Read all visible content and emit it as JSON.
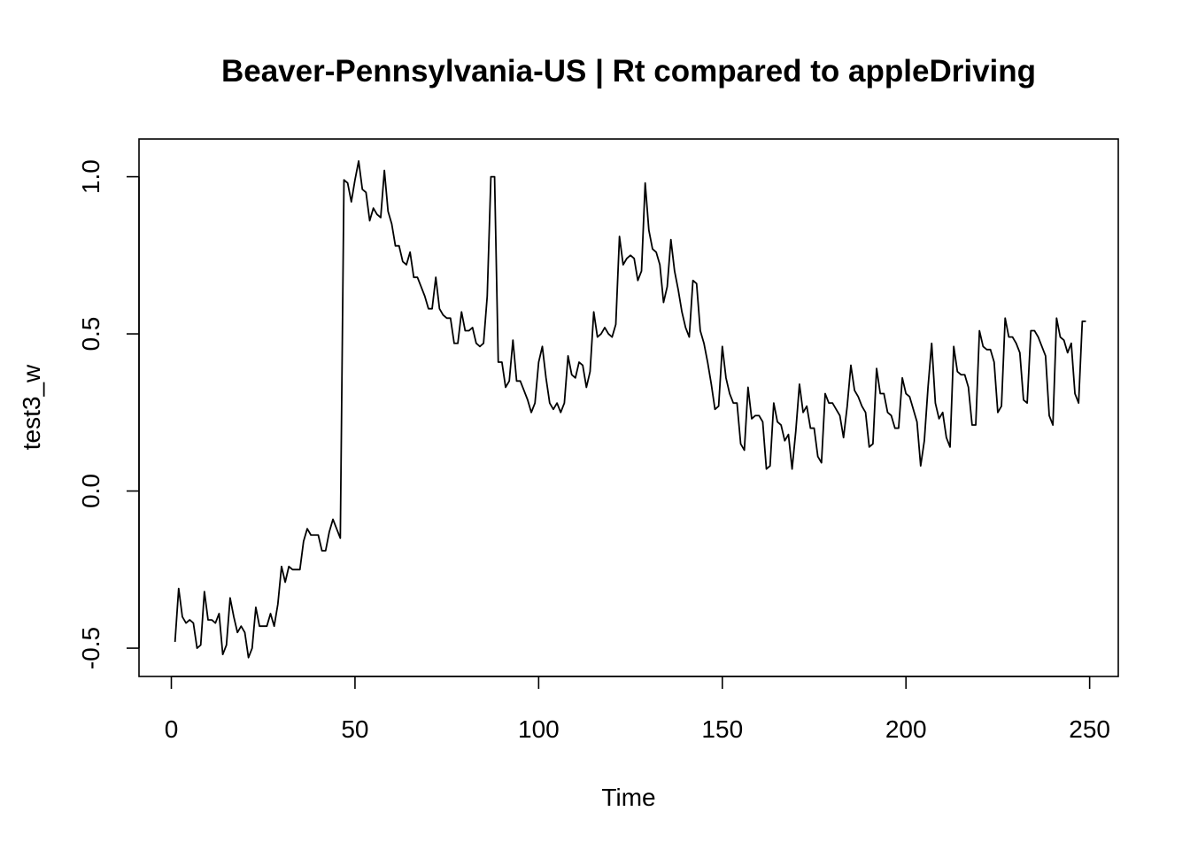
{
  "chart_data": {
    "type": "line",
    "title": "Beaver-Pennsylvania-US | Rt compared to appleDriving",
    "xlabel": "Time",
    "ylabel": "test3_w",
    "xlim": [
      -8.8,
      257.8
    ],
    "ylim": [
      -0.59,
      1.12
    ],
    "grid": false,
    "x_ticks": [
      0,
      50,
      100,
      150,
      200,
      250
    ],
    "y_ticks": [
      -0.5,
      0.0,
      0.5,
      1.0
    ],
    "x_tick_labels": [
      "0",
      "50",
      "100",
      "150",
      "200",
      "250"
    ],
    "y_tick_labels": [
      "-0.5",
      "0.0",
      "0.5",
      "1.0"
    ],
    "line_color": "#000000",
    "series": [
      {
        "x_start": 1,
        "values": [
          -0.48,
          -0.31,
          -0.4,
          -0.42,
          -0.41,
          -0.42,
          -0.5,
          -0.49,
          -0.32,
          -0.41,
          -0.41,
          -0.42,
          -0.39,
          -0.52,
          -0.49,
          -0.34,
          -0.4,
          -0.45,
          -0.43,
          -0.45,
          -0.53,
          -0.5,
          -0.37,
          -0.43,
          -0.43,
          -0.43,
          -0.39,
          -0.43,
          -0.36,
          -0.24,
          -0.29,
          -0.24,
          -0.25,
          -0.25,
          -0.25,
          -0.16,
          -0.12,
          -0.14,
          -0.14,
          -0.14,
          -0.19,
          -0.19,
          -0.13,
          -0.09,
          -0.12,
          -0.15,
          0.99,
          0.98,
          0.92,
          0.99,
          1.05,
          0.96,
          0.95,
          0.86,
          0.9,
          0.88,
          0.87,
          1.02,
          0.89,
          0.85,
          0.78,
          0.78,
          0.73,
          0.72,
          0.76,
          0.68,
          0.68,
          0.65,
          0.62,
          0.58,
          0.58,
          0.68,
          0.58,
          0.56,
          0.55,
          0.55,
          0.47,
          0.47,
          0.57,
          0.51,
          0.51,
          0.52,
          0.47,
          0.46,
          0.47,
          0.62,
          1.0,
          1.0,
          0.41,
          0.41,
          0.33,
          0.35,
          0.48,
          0.35,
          0.35,
          0.32,
          0.29,
          0.25,
          0.28,
          0.41,
          0.46,
          0.36,
          0.28,
          0.26,
          0.28,
          0.25,
          0.28,
          0.43,
          0.37,
          0.36,
          0.41,
          0.4,
          0.33,
          0.38,
          0.57,
          0.49,
          0.5,
          0.52,
          0.5,
          0.49,
          0.53,
          0.81,
          0.72,
          0.74,
          0.75,
          0.74,
          0.67,
          0.7,
          0.98,
          0.83,
          0.77,
          0.76,
          0.72,
          0.6,
          0.65,
          0.8,
          0.7,
          0.64,
          0.57,
          0.52,
          0.49,
          0.67,
          0.66,
          0.51,
          0.47,
          0.41,
          0.34,
          0.26,
          0.27,
          0.46,
          0.36,
          0.31,
          0.28,
          0.28,
          0.15,
          0.13,
          0.33,
          0.23,
          0.24,
          0.24,
          0.22,
          0.07,
          0.08,
          0.28,
          0.22,
          0.21,
          0.16,
          0.18,
          0.07,
          0.19,
          0.34,
          0.25,
          0.27,
          0.2,
          0.2,
          0.11,
          0.09,
          0.31,
          0.28,
          0.28,
          0.26,
          0.24,
          0.17,
          0.27,
          0.4,
          0.32,
          0.3,
          0.27,
          0.25,
          0.14,
          0.15,
          0.39,
          0.31,
          0.31,
          0.25,
          0.24,
          0.2,
          0.2,
          0.36,
          0.31,
          0.3,
          0.26,
          0.22,
          0.08,
          0.16,
          0.33,
          0.47,
          0.28,
          0.23,
          0.25,
          0.17,
          0.14,
          0.46,
          0.38,
          0.37,
          0.37,
          0.33,
          0.21,
          0.21,
          0.51,
          0.46,
          0.45,
          0.45,
          0.41,
          0.25,
          0.27,
          0.55,
          0.49,
          0.49,
          0.47,
          0.44,
          0.29,
          0.28,
          0.51,
          0.51,
          0.49,
          0.46,
          0.43,
          0.24,
          0.21,
          0.55,
          0.49,
          0.48,
          0.44,
          0.47,
          0.31,
          0.28,
          0.54,
          0.54
        ]
      }
    ]
  }
}
